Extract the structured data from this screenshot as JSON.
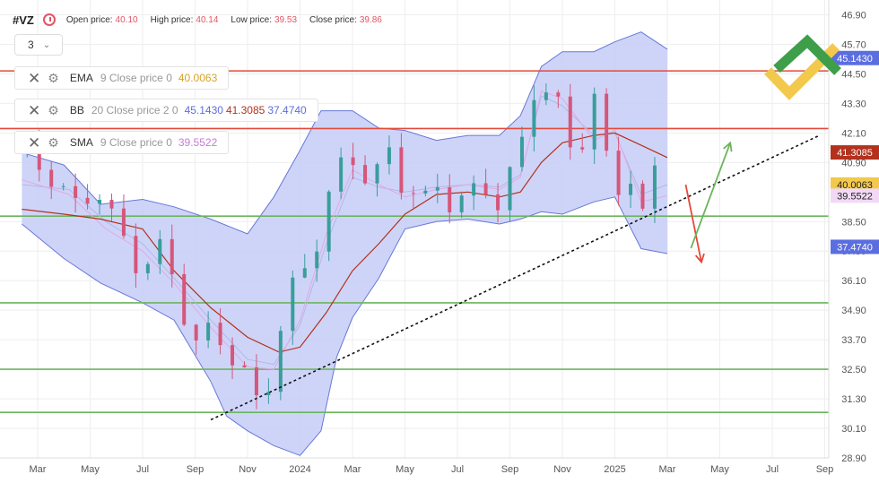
{
  "header": {
    "symbol": "#VZ",
    "open_label": "Open price:",
    "open_value": "40.10",
    "high_label": "High price:",
    "high_value": "40.14",
    "low_label": "Low price:",
    "low_value": "39.53",
    "close_label": "Close price:",
    "close_value": "39.86"
  },
  "interval": {
    "value": "3"
  },
  "indicators": [
    {
      "name": "EMA",
      "params": "9 Close price 0",
      "values": [
        "40.0063"
      ],
      "colors": [
        "#d8a327"
      ]
    },
    {
      "name": "BB",
      "params": "20 Close price 2 0",
      "values": [
        "45.1430",
        "41.3085",
        "37.4740"
      ],
      "colors": [
        "#5b6ee0",
        "#b2321e",
        "#5b6ee0"
      ]
    },
    {
      "name": "SMA",
      "params": "9 Close price 0",
      "values": [
        "39.5522"
      ],
      "colors": [
        "#c77ad6"
      ]
    }
  ],
  "colors": {
    "up": "#3a9d9b",
    "down": "#d6567a",
    "band_fill": "#c6ccf7",
    "band_line": "#6677d8",
    "bb_mid": "#b2321e",
    "sma": "#e2a8e4",
    "ema": "#b0b8e8",
    "resistance": "#e34a3a",
    "support": "#6bb55d",
    "trend": "#111111"
  },
  "chart_data": {
    "type": "candlestick",
    "ylim": [
      28.9,
      47.5
    ],
    "y_ticks": [
      "46.90",
      "45.70",
      "44.50",
      "43.30",
      "42.10",
      "40.90",
      "38.50",
      "37.30",
      "36.10",
      "34.90",
      "33.70",
      "32.50",
      "31.30",
      "30.10",
      "28.90"
    ],
    "x_ticks": [
      "Mar",
      "May",
      "Jul",
      "Sep",
      "Nov",
      "2024",
      "Mar",
      "May",
      "Jul",
      "Sep",
      "Nov",
      "2025",
      "Mar",
      "May",
      "Jul",
      "Sep"
    ],
    "price_labels": [
      {
        "value": 45.143,
        "text": "45.1430",
        "color": "#5b6ee0"
      },
      {
        "value": 41.3085,
        "text": "41.3085",
        "color": "#b2321e"
      },
      {
        "value": 40.0063,
        "text": "40.0063",
        "color": "#f2c94c"
      },
      {
        "value": 39.5522,
        "text": "39.5522",
        "color": "#f1d9f5"
      },
      {
        "value": 37.474,
        "text": "37.4740",
        "color": "#5b6ee0"
      }
    ],
    "resistance_levels": [
      44.62,
      42.28
    ],
    "support_levels": [
      38.72,
      35.2,
      32.5,
      30.75
    ],
    "trendline": {
      "from": [
        3.3,
        30.45
      ],
      "to": [
        14.9,
        42.0
      ]
    },
    "forecast_down": {
      "from": [
        12.35,
        40.0
      ],
      "to": [
        12.65,
        36.85
      ]
    },
    "forecast_up": {
      "from": [
        12.45,
        37.42
      ],
      "to": [
        13.2,
        41.7
      ]
    },
    "bb_upper": [
      [
        -0.3,
        41.3
      ],
      [
        0.5,
        40.8
      ],
      [
        1.2,
        39.2
      ],
      [
        2.0,
        39.4
      ],
      [
        2.6,
        39.1
      ],
      [
        3.3,
        38.6
      ],
      [
        4.0,
        38.0
      ],
      [
        4.5,
        39.5
      ],
      [
        5.0,
        41.4
      ],
      [
        5.4,
        43.0
      ],
      [
        6.0,
        43.0
      ],
      [
        6.5,
        42.3
      ],
      [
        7.0,
        42.2
      ],
      [
        7.6,
        41.8
      ],
      [
        8.2,
        42.0
      ],
      [
        8.8,
        42.0
      ],
      [
        9.2,
        42.8
      ],
      [
        9.6,
        44.8
      ],
      [
        10.0,
        45.4
      ],
      [
        10.6,
        45.4
      ],
      [
        11.0,
        45.8
      ],
      [
        11.5,
        46.2
      ],
      [
        12.0,
        45.5
      ]
    ],
    "bb_lower": [
      [
        -0.3,
        38.4
      ],
      [
        0.5,
        37.0
      ],
      [
        1.2,
        36.0
      ],
      [
        2.0,
        35.2
      ],
      [
        2.6,
        34.5
      ],
      [
        3.3,
        32.0
      ],
      [
        3.6,
        30.6
      ],
      [
        4.0,
        30.0
      ],
      [
        4.5,
        29.4
      ],
      [
        5.0,
        29.0
      ],
      [
        5.4,
        30.0
      ],
      [
        5.7,
        33.0
      ],
      [
        6.0,
        34.6
      ],
      [
        6.5,
        36.2
      ],
      [
        7.0,
        38.2
      ],
      [
        7.6,
        38.5
      ],
      [
        8.2,
        38.6
      ],
      [
        8.8,
        38.4
      ],
      [
        9.2,
        38.6
      ],
      [
        9.6,
        38.9
      ],
      [
        10.0,
        38.8
      ],
      [
        10.6,
        39.3
      ],
      [
        11.0,
        39.5
      ],
      [
        11.5,
        37.4
      ],
      [
        12.0,
        37.2
      ]
    ],
    "bb_middle": [
      [
        -0.3,
        39.0
      ],
      [
        0.5,
        38.8
      ],
      [
        1.2,
        38.6
      ],
      [
        2.0,
        38.2
      ],
      [
        2.6,
        36.5
      ],
      [
        3.3,
        35.0
      ],
      [
        4.0,
        33.8
      ],
      [
        4.6,
        33.2
      ],
      [
        5.0,
        33.4
      ],
      [
        5.5,
        34.8
      ],
      [
        6.0,
        36.5
      ],
      [
        6.5,
        37.6
      ],
      [
        7.0,
        38.8
      ],
      [
        7.6,
        39.6
      ],
      [
        8.2,
        39.7
      ],
      [
        8.8,
        39.5
      ],
      [
        9.2,
        39.7
      ],
      [
        9.6,
        40.9
      ],
      [
        10.0,
        41.7
      ],
      [
        10.6,
        42.0
      ],
      [
        11.0,
        42.1
      ],
      [
        11.5,
        41.6
      ],
      [
        12.0,
        41.1
      ]
    ],
    "sma_line": [
      [
        -0.3,
        40.2
      ],
      [
        0.6,
        39.6
      ],
      [
        1.3,
        38.2
      ],
      [
        2.0,
        37.3
      ],
      [
        2.6,
        36.0
      ],
      [
        3.3,
        34.2
      ],
      [
        4.0,
        32.6
      ],
      [
        4.5,
        32.5
      ],
      [
        5.0,
        34.5
      ],
      [
        5.5,
        38.0
      ],
      [
        6.0,
        40.6
      ],
      [
        6.5,
        40.0
      ],
      [
        7.0,
        39.5
      ],
      [
        7.6,
        39.8
      ],
      [
        8.2,
        40.0
      ],
      [
        8.8,
        39.8
      ],
      [
        9.2,
        40.3
      ],
      [
        9.6,
        43.8
      ],
      [
        10.0,
        43.5
      ],
      [
        10.6,
        41.8
      ],
      [
        11.0,
        42.2
      ],
      [
        11.5,
        39.3
      ],
      [
        12.0,
        39.55
      ]
    ],
    "ema_line": [
      [
        -0.3,
        40.0
      ],
      [
        0.6,
        39.8
      ],
      [
        1.3,
        38.5
      ],
      [
        2.0,
        37.6
      ],
      [
        2.6,
        36.2
      ],
      [
        3.3,
        34.5
      ],
      [
        4.0,
        32.9
      ],
      [
        4.5,
        32.7
      ],
      [
        5.0,
        34.3
      ],
      [
        5.5,
        37.6
      ],
      [
        6.0,
        40.3
      ],
      [
        6.5,
        39.9
      ],
      [
        7.0,
        39.7
      ],
      [
        7.6,
        39.9
      ],
      [
        8.2,
        40.0
      ],
      [
        8.8,
        39.9
      ],
      [
        9.2,
        40.4
      ],
      [
        9.6,
        43.6
      ],
      [
        10.0,
        43.2
      ],
      [
        10.6,
        42.0
      ],
      [
        11.0,
        42.1
      ],
      [
        11.5,
        39.6
      ],
      [
        12.0,
        40.0
      ]
    ],
    "close_path": [
      [
        -0.3,
        41.3
      ],
      [
        0.3,
        40.3
      ],
      [
        0.7,
        39.0
      ],
      [
        1.1,
        40.0
      ],
      [
        1.5,
        38.2
      ],
      [
        2.0,
        36.5
      ],
      [
        2.4,
        37.5
      ],
      [
        2.7,
        35.5
      ],
      [
        3.0,
        33.3
      ],
      [
        3.3,
        34.2
      ],
      [
        3.6,
        33.5
      ],
      [
        4.0,
        31.8
      ],
      [
        4.3,
        31.0
      ],
      [
        4.6,
        34.0
      ],
      [
        5.0,
        36.5
      ],
      [
        5.3,
        37.5
      ],
      [
        5.6,
        40.0
      ],
      [
        6.0,
        41.3
      ],
      [
        6.3,
        40.0
      ],
      [
        6.7,
        41.2
      ],
      [
        7.0,
        40.0
      ],
      [
        7.3,
        39.2
      ],
      [
        7.7,
        40.0
      ],
      [
        8.0,
        39.0
      ],
      [
        8.4,
        40.0
      ],
      [
        8.8,
        39.4
      ],
      [
        9.1,
        40.5
      ],
      [
        9.4,
        43.7
      ],
      [
        9.7,
        44.0
      ],
      [
        10.0,
        42.5
      ],
      [
        10.3,
        41.0
      ],
      [
        10.6,
        43.8
      ],
      [
        10.9,
        40.0
      ],
      [
        11.3,
        40.2
      ],
      [
        11.5,
        38.5
      ],
      [
        11.7,
        40.5
      ],
      [
        11.95,
        39.86
      ]
    ],
    "candle_amplitude": 0.85
  }
}
